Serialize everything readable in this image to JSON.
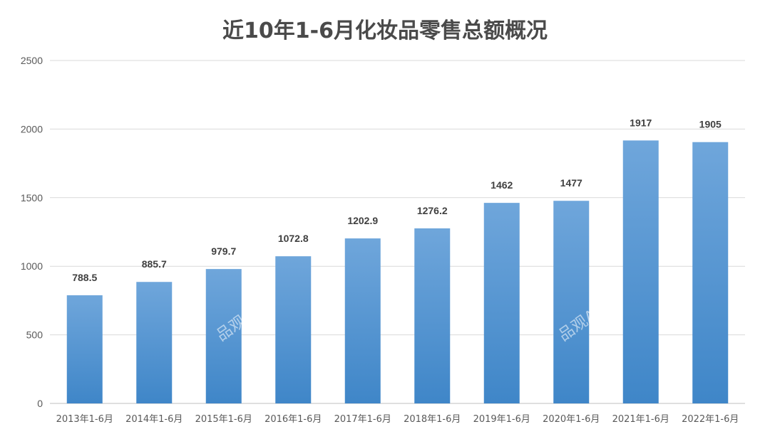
{
  "chart_data": {
    "type": "bar",
    "title": "近10年1-6月化妆品零售总额概况",
    "categories": [
      "2013年1-6月",
      "2014年1-6月",
      "2015年1-6月",
      "2016年1-6月",
      "2017年1-6月",
      "2018年1-6月",
      "2019年1-6月",
      "2020年1-6月",
      "2021年1-6月",
      "2022年1-6月"
    ],
    "values": [
      788.5,
      885.7,
      979.7,
      1072.8,
      1202.9,
      1276.2,
      1462,
      1477,
      1917,
      1905
    ],
    "value_labels": [
      "788.5",
      "885.7",
      "979.7",
      "1072.8",
      "1202.9",
      "1276.2",
      "1462",
      "1477",
      "1917",
      "1905"
    ],
    "yticks": [
      "0",
      "500",
      "1000",
      "1500",
      "2000",
      "2500"
    ],
    "ylim": [
      0,
      2500
    ],
    "grid": true,
    "bar_color_top": "#6fa6db",
    "bar_color_bottom": "#3f86c8",
    "watermarks": [
      "品观",
      "品观A"
    ]
  }
}
